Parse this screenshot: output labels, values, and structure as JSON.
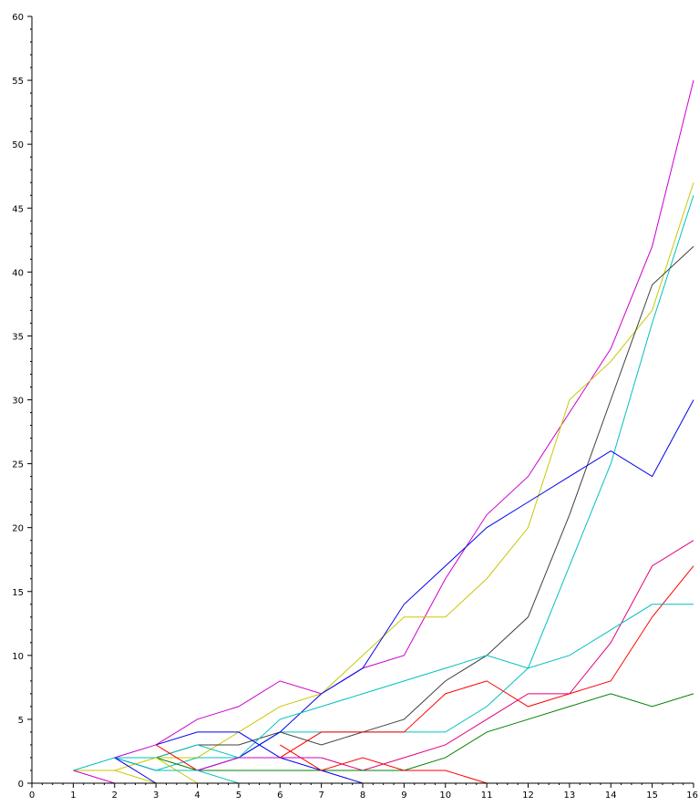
{
  "chart_data": {
    "type": "line",
    "title": "",
    "xlabel": "",
    "ylabel": "",
    "xlim": [
      0,
      16
    ],
    "ylim": [
      0,
      60
    ],
    "grid": false,
    "x_ticks": [
      "0",
      "1",
      "2",
      "3",
      "4",
      "5",
      "6",
      "7",
      "8",
      "9",
      "10",
      "11",
      "12",
      "13",
      "14",
      "15",
      "16"
    ],
    "y_ticks": [
      "0",
      "5",
      "10",
      "15",
      "20",
      "25",
      "30",
      "35",
      "40",
      "45",
      "50",
      "55",
      "60"
    ],
    "series": [
      {
        "color": "#cc00cc",
        "points": [
          [
            2,
            2
          ],
          [
            3,
            3
          ],
          [
            4,
            5
          ],
          [
            5,
            6
          ],
          [
            6,
            8
          ],
          [
            7,
            7
          ],
          [
            8,
            9
          ],
          [
            9,
            10
          ],
          [
            10,
            16
          ],
          [
            11,
            21
          ],
          [
            12,
            24
          ],
          [
            13,
            29
          ],
          [
            14,
            34
          ],
          [
            15,
            42
          ],
          [
            16,
            55
          ]
        ]
      },
      {
        "color": "#c8c800",
        "points": [
          [
            3,
            2
          ],
          [
            4,
            2
          ],
          [
            5,
            4
          ],
          [
            6,
            6
          ],
          [
            7,
            7
          ],
          [
            8,
            10
          ],
          [
            9,
            13
          ],
          [
            10,
            13
          ],
          [
            11,
            16
          ],
          [
            12,
            20
          ],
          [
            13,
            30
          ],
          [
            14,
            33
          ],
          [
            15,
            37
          ],
          [
            16,
            47
          ]
        ]
      },
      {
        "color": "#00c0c0",
        "points": [
          [
            3,
            1
          ],
          [
            4,
            2
          ],
          [
            5,
            2
          ],
          [
            6,
            4
          ],
          [
            7,
            4
          ],
          [
            8,
            4
          ],
          [
            9,
            4
          ],
          [
            10,
            4
          ],
          [
            11,
            6
          ],
          [
            12,
            9
          ],
          [
            13,
            17
          ],
          [
            14,
            25
          ],
          [
            15,
            36
          ],
          [
            16,
            46
          ]
        ]
      },
      {
        "color": "#404040",
        "points": [
          [
            3,
            2
          ],
          [
            4,
            3
          ],
          [
            5,
            3
          ],
          [
            6,
            4
          ],
          [
            7,
            3
          ],
          [
            8,
            4
          ],
          [
            9,
            5
          ],
          [
            10,
            8
          ],
          [
            11,
            10
          ],
          [
            12,
            13
          ],
          [
            13,
            21
          ],
          [
            14,
            30
          ],
          [
            15,
            39
          ],
          [
            16,
            42
          ]
        ]
      },
      {
        "color": "#0000ee",
        "points": [
          [
            5,
            2
          ],
          [
            6,
            4
          ],
          [
            7,
            7
          ],
          [
            8,
            9
          ],
          [
            9,
            14
          ],
          [
            10,
            17
          ],
          [
            11,
            20
          ],
          [
            12,
            22
          ],
          [
            13,
            24
          ],
          [
            14,
            26
          ],
          [
            15,
            24
          ],
          [
            16,
            30
          ]
        ]
      },
      {
        "color": "#e0007a",
        "points": [
          [
            7,
            2
          ],
          [
            8,
            1
          ],
          [
            9,
            2
          ],
          [
            10,
            3
          ],
          [
            11,
            5
          ],
          [
            12,
            7
          ],
          [
            13,
            7
          ],
          [
            14,
            11
          ],
          [
            15,
            17
          ],
          [
            16,
            19
          ]
        ]
      },
      {
        "color": "#ff0000",
        "points": [
          [
            5,
            2
          ],
          [
            6,
            2
          ],
          [
            7,
            4
          ],
          [
            8,
            4
          ],
          [
            9,
            4
          ],
          [
            10,
            7
          ],
          [
            11,
            8
          ],
          [
            12,
            6
          ],
          [
            13,
            7
          ],
          [
            14,
            8
          ],
          [
            15,
            13
          ],
          [
            16,
            17
          ]
        ]
      },
      {
        "color": "#00c0c0",
        "points": [
          [
            1,
            1
          ],
          [
            2,
            2
          ],
          [
            3,
            2
          ],
          [
            4,
            3
          ],
          [
            5,
            2
          ],
          [
            6,
            5
          ],
          [
            7,
            6
          ],
          [
            8,
            7
          ],
          [
            9,
            8
          ],
          [
            10,
            9
          ],
          [
            11,
            10
          ],
          [
            12,
            9
          ],
          [
            13,
            10
          ],
          [
            14,
            12
          ],
          [
            15,
            14
          ],
          [
            16,
            14
          ]
        ]
      },
      {
        "color": "#008000",
        "points": [
          [
            3,
            2
          ],
          [
            4,
            1
          ],
          [
            5,
            1
          ],
          [
            6,
            1
          ],
          [
            7,
            1
          ],
          [
            8,
            1
          ],
          [
            9,
            1
          ],
          [
            10,
            2
          ],
          [
            11,
            4
          ],
          [
            12,
            5
          ],
          [
            13,
            6
          ],
          [
            14,
            7
          ],
          [
            15,
            6
          ],
          [
            16,
            7
          ]
        ]
      },
      {
        "color": "#0000ee",
        "points": [
          [
            2,
            2
          ],
          [
            3,
            1
          ],
          [
            4,
            1
          ],
          [
            5,
            2
          ],
          [
            6,
            2
          ],
          [
            7,
            1
          ],
          [
            8,
            0
          ]
        ]
      },
      {
        "color": "#0000ee",
        "points": [
          [
            3,
            3
          ],
          [
            4,
            4
          ],
          [
            5,
            4
          ],
          [
            6,
            2
          ]
        ]
      },
      {
        "color": "#ff0000",
        "points": [
          [
            3,
            3
          ],
          [
            4,
            1
          ]
        ]
      },
      {
        "color": "#ff0000",
        "points": [
          [
            6,
            3
          ],
          [
            7,
            1
          ],
          [
            8,
            2
          ],
          [
            9,
            1
          ],
          [
            10,
            1
          ],
          [
            11,
            0
          ]
        ]
      },
      {
        "color": "#cc00cc",
        "points": [
          [
            4,
            1
          ],
          [
            5,
            2
          ],
          [
            6,
            2
          ],
          [
            7,
            2
          ]
        ]
      },
      {
        "color": "#c8c800",
        "points": [
          [
            1,
            1
          ],
          [
            2,
            1
          ],
          [
            3,
            2
          ],
          [
            4,
            0
          ]
        ]
      },
      {
        "color": "#c8c800",
        "points": [
          [
            2,
            1
          ],
          [
            3,
            0
          ]
        ]
      },
      {
        "color": "#00c0c0",
        "points": [
          [
            2,
            2
          ],
          [
            3,
            1
          ],
          [
            4,
            1
          ],
          [
            5,
            0
          ]
        ]
      },
      {
        "color": "#cc00cc",
        "points": [
          [
            1,
            1
          ],
          [
            2,
            0
          ]
        ]
      },
      {
        "color": "#0000ee",
        "points": [
          [
            2,
            2
          ],
          [
            3,
            0
          ]
        ]
      }
    ]
  }
}
